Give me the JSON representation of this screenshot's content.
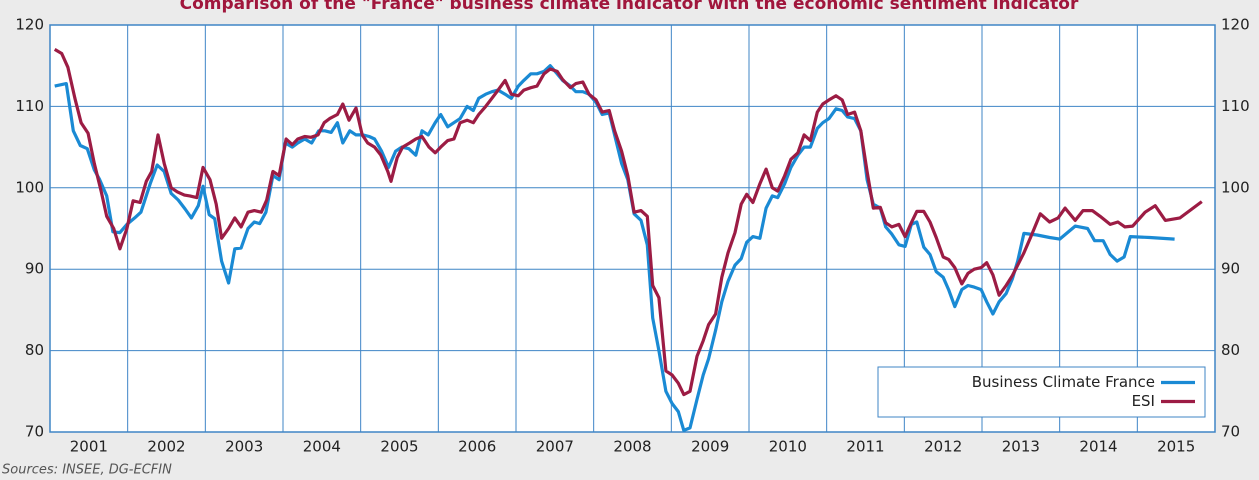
{
  "chart_data": {
    "type": "line",
    "title": "Comparison of the \"France\" business climate indicator with the economic sentiment indicator",
    "source": "Sources: INSEE, DG-ECFIN",
    "xlim": [
      2001,
      2016
    ],
    "xticks": [
      2001,
      2002,
      2003,
      2004,
      2005,
      2006,
      2007,
      2008,
      2009,
      2010,
      2011,
      2012,
      2013,
      2014,
      2015
    ],
    "ylim": [
      70,
      120
    ],
    "yticks": [
      70,
      80,
      90,
      100,
      110,
      120
    ],
    "grid": true,
    "legend": "lower right",
    "series": [
      {
        "name": "Business Climate France",
        "color": "#1a8ad4",
        "x": [
          2001.06,
          2001.21,
          2001.3,
          2001.39,
          2001.48,
          2001.57,
          2001.64,
          2001.73,
          2001.81,
          2001.9,
          2001.99,
          2002.09,
          2002.17,
          2002.29,
          2002.38,
          2002.47,
          2002.56,
          2002.65,
          2002.74,
          2002.82,
          2002.91,
          2002.97,
          2003.05,
          2003.12,
          2003.21,
          2003.3,
          2003.38,
          2003.46,
          2003.55,
          2003.63,
          2003.7,
          2003.78,
          2003.87,
          2003.95,
          2004.03,
          2004.12,
          2004.19,
          2004.28,
          2004.37,
          2004.46,
          2004.54,
          2004.62,
          2004.7,
          2004.77,
          2004.86,
          2004.94,
          2005.03,
          2005.11,
          2005.18,
          2005.27,
          2005.36,
          2005.45,
          2005.53,
          2005.62,
          2005.71,
          2005.79,
          2005.87,
          2005.96,
          2006.03,
          2006.12,
          2006.2,
          2006.28,
          2006.37,
          2006.45,
          2006.52,
          2006.61,
          2006.69,
          2006.77,
          2006.86,
          2006.94,
          2007.03,
          2007.1,
          2007.19,
          2007.27,
          2007.36,
          2007.44,
          2007.53,
          2007.6,
          2007.7,
          2007.77,
          2007.86,
          2007.94,
          2008.03,
          2008.11,
          2008.2,
          2008.27,
          2008.36,
          2008.44,
          2008.52,
          2008.61,
          2008.69,
          2008.76,
          2008.84,
          2008.93,
          2009.01,
          2009.09,
          2009.16,
          2009.24,
          2009.33,
          2009.41,
          2009.48,
          2009.57,
          2009.65,
          2009.73,
          2009.82,
          2009.9,
          2009.97,
          2010.05,
          2010.14,
          2010.22,
          2010.3,
          2010.37,
          2010.46,
          2010.54,
          2010.63,
          2010.71,
          2010.79,
          2010.88,
          2010.95,
          2011.03,
          2011.12,
          2011.2,
          2011.27,
          2011.36,
          2011.44,
          2011.52,
          2011.6,
          2011.69,
          2011.76,
          2011.84,
          2011.93,
          2012.01,
          2012.09,
          2012.16,
          2012.25,
          2012.33,
          2012.41,
          2012.5,
          2012.57,
          2012.65,
          2012.74,
          2012.82,
          2012.9,
          2012.99,
          2013.06,
          2013.14,
          2013.22,
          2013.31,
          2013.39,
          2013.46,
          2013.54,
          2013.71,
          2013.87,
          2014.0,
          2014.2,
          2014.36,
          2014.45,
          2014.56,
          2014.65,
          2014.74,
          2014.83,
          2014.91,
          2015.16,
          2015.48
        ],
        "values": [
          112.5,
          112.8,
          107,
          105.2,
          104.8,
          102.2,
          101,
          99,
          94.6,
          94.5,
          95.5,
          96.3,
          97,
          100.5,
          102.8,
          102,
          99.3,
          98.5,
          97.4,
          96.3,
          97.8,
          100.2,
          96.7,
          96.2,
          91,
          88.3,
          92.5,
          92.6,
          95,
          95.8,
          95.6,
          97,
          101.5,
          101,
          105.5,
          105,
          105.5,
          106,
          105.5,
          107,
          107,
          106.8,
          108,
          105.5,
          107,
          106.5,
          106.5,
          106.3,
          106,
          104.5,
          102.5,
          104.5,
          105,
          104.8,
          104,
          107,
          106.5,
          108,
          109,
          107.5,
          108,
          108.5,
          110,
          109.5,
          111,
          111.5,
          111.8,
          112,
          111.5,
          111,
          112.5,
          113.2,
          114,
          114,
          114.3,
          115,
          114,
          113.2,
          112.5,
          111.8,
          111.8,
          111.5,
          110.5,
          109,
          109.2,
          106.5,
          103,
          101,
          96.8,
          96,
          93,
          84,
          80,
          75,
          73.5,
          72.5,
          70.2,
          70.5,
          74,
          77,
          79,
          82.5,
          86,
          88.5,
          90.5,
          91.3,
          93.3,
          94,
          93.8,
          97.5,
          99,
          98.8,
          100.5,
          102.5,
          104,
          105,
          105,
          107.3,
          108,
          108.5,
          109.7,
          109.5,
          108.7,
          108.5,
          107,
          101,
          98,
          97.5,
          95.2,
          94.3,
          93,
          92.8,
          95.5,
          95.8,
          92.7,
          91.8,
          89.7,
          89,
          87.5,
          85.4,
          87.5,
          88,
          87.8,
          87.5,
          86,
          84.5,
          86,
          87,
          88.8,
          91,
          94.4,
          94.2,
          93.9,
          93.7,
          95.3,
          95,
          93.5,
          93.5,
          91.8,
          91,
          91.5,
          94,
          93.9,
          93.7
        ]
      },
      {
        "name": "ESI",
        "color": "#9c1c44",
        "x": [
          2001.06,
          2001.15,
          2001.23,
          2001.32,
          2001.4,
          2001.49,
          2001.57,
          2001.66,
          2001.73,
          2001.82,
          2001.9,
          2001.99,
          2002.07,
          2002.16,
          2002.24,
          2002.31,
          2002.39,
          2002.47,
          2002.56,
          2002.64,
          2002.73,
          2002.8,
          2002.89,
          2002.97,
          2003.06,
          2003.14,
          2003.21,
          2003.3,
          2003.38,
          2003.46,
          2003.55,
          2003.63,
          2003.72,
          2003.79,
          2003.87,
          2003.95,
          2004.04,
          2004.12,
          2004.19,
          2004.28,
          2004.36,
          2004.45,
          2004.53,
          2004.6,
          2004.7,
          2004.77,
          2004.85,
          2004.94,
          2005.02,
          2005.09,
          2005.18,
          2005.26,
          2005.35,
          2005.39,
          2005.47,
          2005.54,
          2005.63,
          2005.71,
          2005.79,
          2005.88,
          2005.96,
          2006.03,
          2006.12,
          2006.2,
          2006.28,
          2006.37,
          2006.45,
          2006.52,
          2006.61,
          2006.69,
          2006.77,
          2006.86,
          2006.94,
          2007.03,
          2007.1,
          2007.19,
          2007.27,
          2007.36,
          2007.44,
          2007.53,
          2007.6,
          2007.7,
          2007.77,
          2007.86,
          2007.94,
          2008.03,
          2008.11,
          2008.2,
          2008.27,
          2008.36,
          2008.44,
          2008.52,
          2008.61,
          2008.69,
          2008.76,
          2008.84,
          2008.93,
          2009.01,
          2009.09,
          2009.16,
          2009.24,
          2009.33,
          2009.41,
          2009.48,
          2009.57,
          2009.65,
          2009.73,
          2009.82,
          2009.9,
          2009.97,
          2010.05,
          2010.14,
          2010.22,
          2010.3,
          2010.37,
          2010.46,
          2010.54,
          2010.63,
          2010.71,
          2010.79,
          2010.88,
          2010.95,
          2011.03,
          2011.12,
          2011.2,
          2011.27,
          2011.36,
          2011.44,
          2011.52,
          2011.6,
          2011.69,
          2011.76,
          2011.84,
          2011.93,
          2012.01,
          2012.09,
          2012.16,
          2012.25,
          2012.33,
          2012.41,
          2012.5,
          2012.57,
          2012.65,
          2012.74,
          2012.82,
          2012.9,
          2012.99,
          2013.06,
          2013.14,
          2013.22,
          2013.31,
          2013.39,
          2013.46,
          2013.54,
          2013.63,
          2013.75,
          2013.87,
          2013.98,
          2014.07,
          2014.2,
          2014.3,
          2014.42,
          2014.52,
          2014.65,
          2014.75,
          2014.84,
          2014.94,
          2015.1,
          2015.23,
          2015.36,
          2015.55,
          2015.83
        ],
        "values": [
          117,
          116.5,
          114.8,
          111,
          108,
          106.7,
          103,
          99.5,
          96.5,
          95,
          92.5,
          95,
          98.4,
          98.2,
          100.8,
          102,
          106.5,
          103,
          100,
          99.5,
          99.1,
          99,
          98.8,
          102.5,
          101,
          98,
          93.8,
          95,
          96.3,
          95.2,
          97,
          97.2,
          97,
          98.5,
          102,
          101.5,
          106,
          105.3,
          106,
          106.3,
          106.2,
          106.5,
          108,
          108.5,
          109,
          110.3,
          108.3,
          109.8,
          106.5,
          105.5,
          105,
          104,
          102,
          100.8,
          103.7,
          105,
          105.5,
          106,
          106.3,
          105,
          104.3,
          105,
          105.8,
          106,
          108,
          108.3,
          108,
          109,
          110,
          111,
          112,
          113.2,
          111.5,
          111.3,
          112,
          112.3,
          112.5,
          114,
          114.6,
          114.3,
          113.3,
          112.3,
          112.8,
          113,
          111.5,
          110.8,
          109.3,
          109.5,
          107,
          104.5,
          101.5,
          97,
          97.2,
          96.5,
          88,
          86.5,
          77.5,
          77,
          76,
          74.6,
          75,
          79.3,
          81.2,
          83.2,
          84.5,
          89,
          92,
          94.5,
          98,
          99.2,
          98.2,
          100.5,
          102.3,
          100,
          99.6,
          101.5,
          103.5,
          104.3,
          106.5,
          105.8,
          109.3,
          110.3,
          110.8,
          111.3,
          110.8,
          109,
          109.3,
          107,
          102,
          97.5,
          97.6,
          95.7,
          95.2,
          95.5,
          94,
          95.7,
          97.1,
          97.1,
          95.8,
          93.9,
          91.5,
          91.2,
          90.2,
          88.2,
          89.5,
          90,
          90.2,
          90.8,
          89.3,
          86.8,
          88,
          89.2,
          90.5,
          92,
          94,
          96.8,
          95.8,
          96.3,
          97.5,
          96,
          97.2,
          97.2,
          96.5,
          95.5,
          95.8,
          95.2,
          95.3,
          97,
          97.8,
          96,
          96.3,
          98.3
        ]
      }
    ]
  }
}
